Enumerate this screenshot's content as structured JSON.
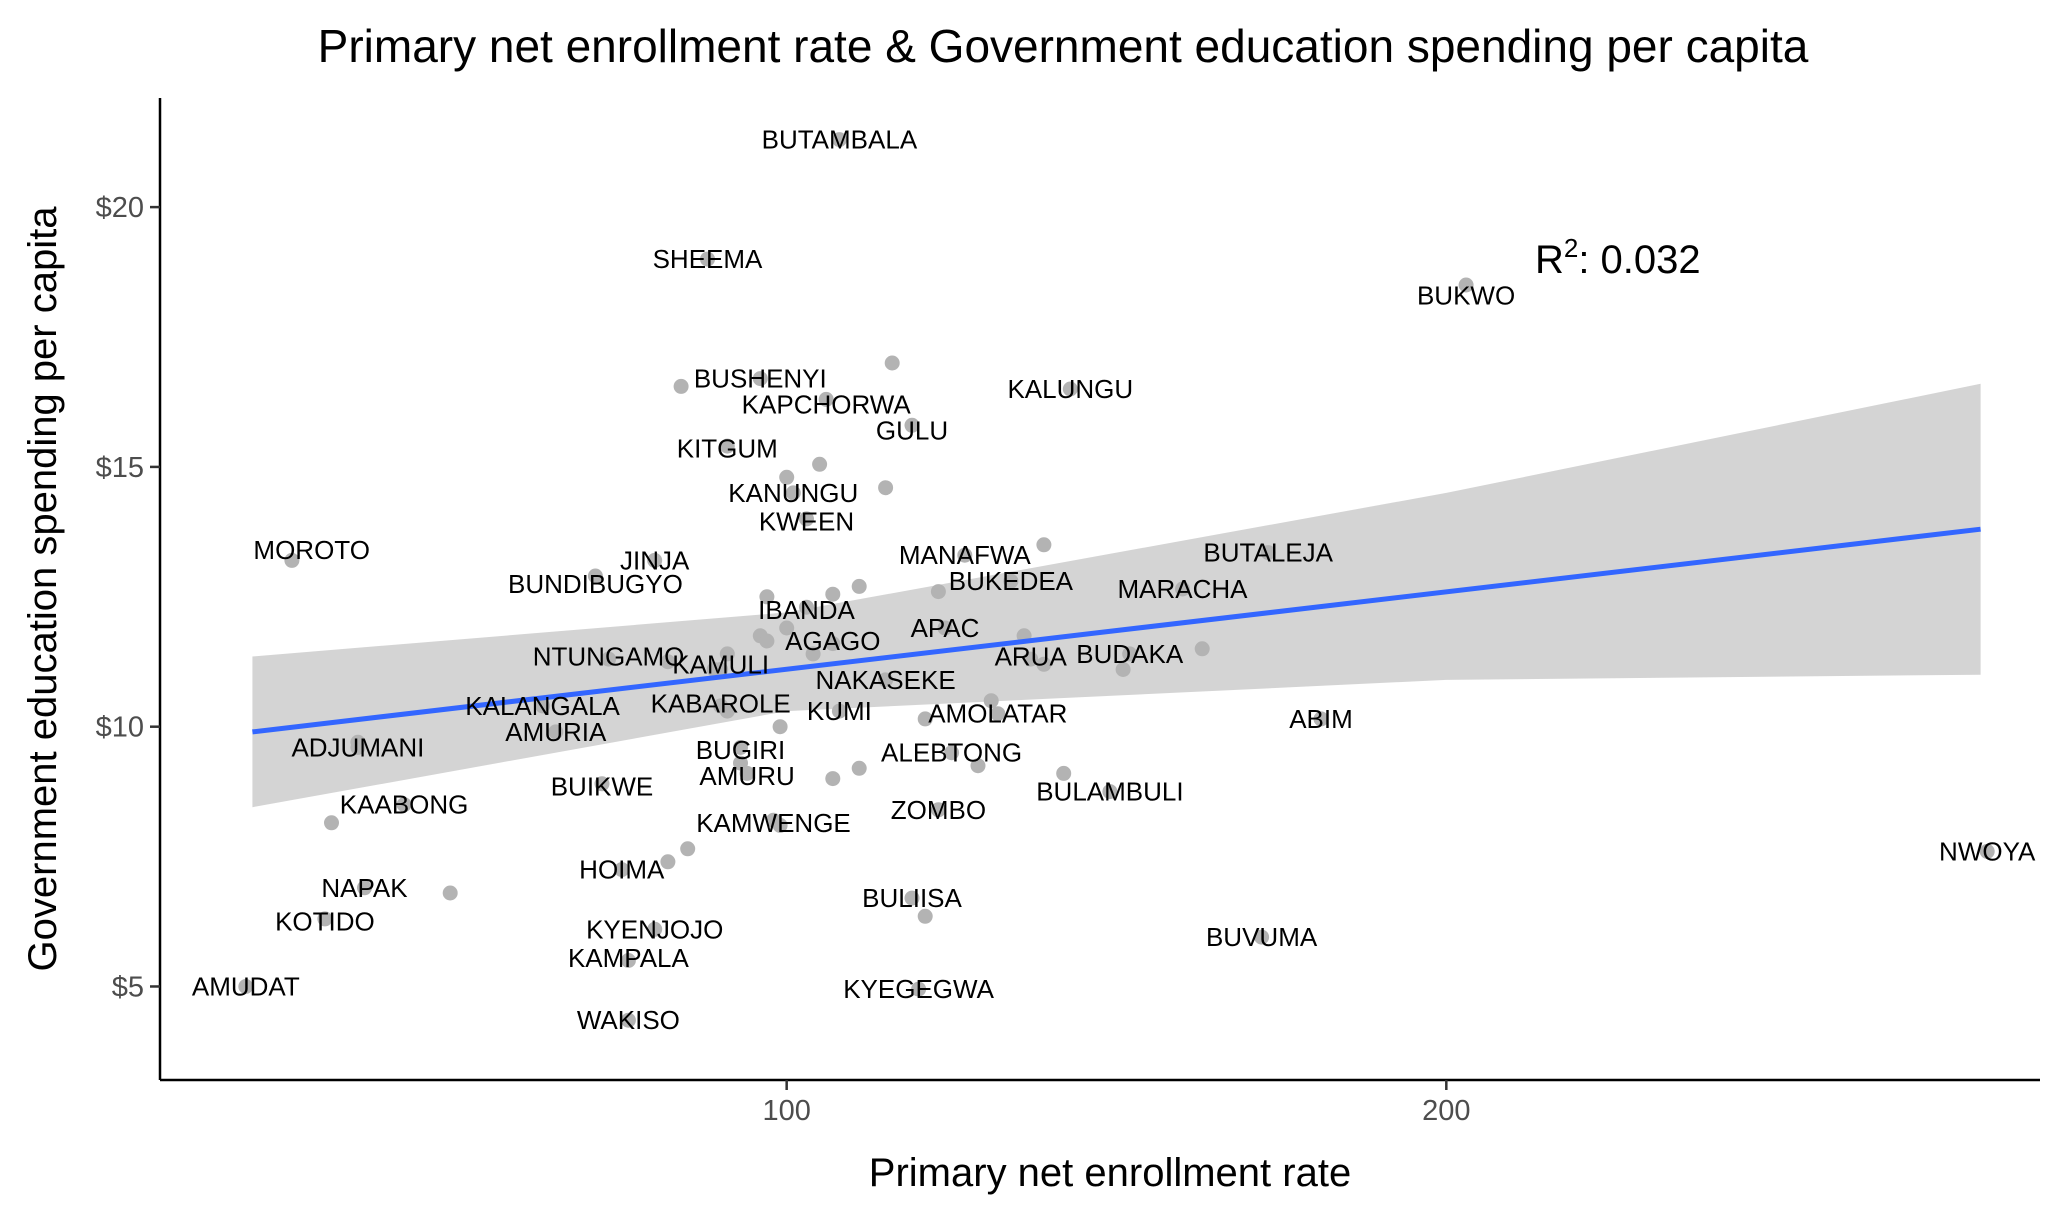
{
  "chart_data": {
    "type": "scatter",
    "title": "Primary net enrollment rate & Government education spending per capita",
    "xlabel": "Primary net enrollment rate",
    "ylabel": "Government education spending per capita",
    "xlim": [
      5,
      290
    ],
    "ylim": [
      3.2,
      22.1
    ],
    "x_ticks": [
      100,
      200
    ],
    "x_tick_labels": [
      "100",
      "200"
    ],
    "y_ticks": [
      5,
      10,
      15,
      20
    ],
    "y_tick_labels": [
      "$5",
      "$10",
      "$15",
      "$20"
    ],
    "annotation": {
      "label": "R",
      "superscript": "2",
      "text": ": 0.032",
      "x": 226,
      "y": 19.0
    },
    "fit": {
      "x_start": 19,
      "x_end": 281,
      "line": [
        [
          19,
          9.9
        ],
        [
          281,
          13.8
        ]
      ],
      "band_upper": [
        [
          19,
          11.35
        ],
        [
          100,
          12.2
        ],
        [
          200,
          14.5
        ],
        [
          281,
          16.6
        ]
      ],
      "band_lower": [
        [
          19,
          8.45
        ],
        [
          100,
          10.3
        ],
        [
          200,
          10.9
        ],
        [
          281,
          11.0
        ]
      ],
      "color": "#3366ff",
      "band_color": "#cccccc"
    },
    "point_color": "#b3b3b3",
    "points": [
      {
        "label": "BUTAMBALA",
        "x": 108,
        "y": 21.3,
        "lx": 108,
        "ly": 21.3
      },
      {
        "label": "SHEEMA",
        "x": 88,
        "y": 19.0,
        "lx": 88,
        "ly": 19.0
      },
      {
        "label": "BUKWO",
        "x": 203,
        "y": 18.5,
        "lx": 203,
        "ly": 18.3
      },
      {
        "label": "BUSHENYI",
        "x": 96,
        "y": 16.7,
        "lx": 96,
        "ly": 16.7
      },
      {
        "label": "KAPCHORWA",
        "x": 106,
        "y": 16.3,
        "lx": 106,
        "ly": 16.2
      },
      {
        "label": "KALUNGU",
        "x": 143,
        "y": 16.5,
        "lx": 143,
        "ly": 16.5
      },
      {
        "label": "GULU",
        "x": 119,
        "y": 15.8,
        "lx": 119,
        "ly": 15.7
      },
      {
        "label": "KITGUM",
        "x": 91,
        "y": 15.4,
        "lx": 91,
        "ly": 15.35
      },
      {
        "label": "KANUNGU",
        "x": 101,
        "y": 14.5,
        "lx": 101,
        "ly": 14.5
      },
      {
        "label": "KWEEN",
        "x": 103,
        "y": 14.0,
        "lx": 103,
        "ly": 13.95
      },
      {
        "label": "MOROTO",
        "x": 25,
        "y": 13.2,
        "lx": 28,
        "ly": 13.4
      },
      {
        "label": "JINJA",
        "x": 80,
        "y": 13.2,
        "lx": 80,
        "ly": 13.2
      },
      {
        "label": "BUNDIBUGYO",
        "x": 71,
        "y": 12.9,
        "lx": 71,
        "ly": 12.75
      },
      {
        "label": "MANAFWA",
        "x": 127,
        "y": 13.3,
        "lx": 127,
        "ly": 13.3
      },
      {
        "label": "BUTALEJA",
        "x": 173,
        "y": 13.35,
        "lx": 173,
        "ly": 13.35
      },
      {
        "label": "BUKEDEA",
        "x": 134,
        "y": 12.8,
        "lx": 134,
        "ly": 12.8
      },
      {
        "label": "MARACHA",
        "x": 160,
        "y": 12.65,
        "lx": 160,
        "ly": 12.65
      },
      {
        "label": "IBANDA",
        "x": 103,
        "y": 12.3,
        "lx": 103,
        "ly": 12.25
      },
      {
        "label": "APAC",
        "x": 124,
        "y": 11.9,
        "lx": 124,
        "ly": 11.9
      },
      {
        "label": "AGAGO",
        "x": 107,
        "y": 11.6,
        "lx": 107,
        "ly": 11.65
      },
      {
        "label": "NTUNGAMO",
        "x": 73,
        "y": 11.3,
        "lx": 73,
        "ly": 11.35
      },
      {
        "label": "ARUA",
        "x": 137,
        "y": 11.3,
        "lx": 137,
        "ly": 11.35
      },
      {
        "label": "BUDAKA",
        "x": 152,
        "y": 11.4,
        "lx": 152,
        "ly": 11.4
      },
      {
        "label": "KAMULI",
        "x": 90,
        "y": 11.1,
        "lx": 90,
        "ly": 11.2
      },
      {
        "label": "NAKASEKE",
        "x": 115,
        "y": 10.9,
        "lx": 115,
        "ly": 10.9
      },
      {
        "label": "KALANGALA",
        "x": 63,
        "y": 10.4,
        "lx": 63,
        "ly": 10.4
      },
      {
        "label": "KABAROLE",
        "x": 90,
        "y": 10.4,
        "lx": 90,
        "ly": 10.45
      },
      {
        "label": "KUMI",
        "x": 108,
        "y": 10.3,
        "lx": 108,
        "ly": 10.3
      },
      {
        "label": "AMOLATAR",
        "x": 132,
        "y": 10.25,
        "lx": 132,
        "ly": 10.25
      },
      {
        "label": "AMURIA",
        "x": 65,
        "y": 9.9,
        "lx": 65,
        "ly": 9.9
      },
      {
        "label": "ABIM",
        "x": 181,
        "y": 10.15,
        "lx": 181,
        "ly": 10.15
      },
      {
        "label": "ADJUMANI",
        "x": 35,
        "y": 9.6,
        "lx": 35,
        "ly": 9.6
      },
      {
        "label": "BUGIRI",
        "x": 93,
        "y": 9.6,
        "lx": 93,
        "ly": 9.55
      },
      {
        "label": "ALEBTONG",
        "x": 125,
        "y": 9.5,
        "lx": 125,
        "ly": 9.5
      },
      {
        "label": "AMURU",
        "x": 94,
        "y": 9.1,
        "lx": 94,
        "ly": 9.05
      },
      {
        "label": "BUIKWE",
        "x": 72,
        "y": 8.9,
        "lx": 72,
        "ly": 8.85
      },
      {
        "label": "BULAMBULI",
        "x": 149,
        "y": 8.75,
        "lx": 149,
        "ly": 8.75
      },
      {
        "label": "KAABONG",
        "x": 42,
        "y": 8.5,
        "lx": 42,
        "ly": 8.5
      },
      {
        "label": "ZOMBO",
        "x": 123,
        "y": 8.4,
        "lx": 123,
        "ly": 8.4
      },
      {
        "label": "KAMWENGE",
        "x": 98,
        "y": 8.2,
        "lx": 98,
        "ly": 8.15
      },
      {
        "label": "NWOYA",
        "x": 282,
        "y": 7.6,
        "lx": 282,
        "ly": 7.6
      },
      {
        "label": "HOIMA",
        "x": 75,
        "y": 7.25,
        "lx": 75,
        "ly": 7.25
      },
      {
        "label": "NAPAK",
        "x": 36,
        "y": 6.9,
        "lx": 36,
        "ly": 6.9
      },
      {
        "label": "BULIISA",
        "x": 119,
        "y": 6.7,
        "lx": 119,
        "ly": 6.7
      },
      {
        "label": "KOTIDO",
        "x": 30,
        "y": 6.3,
        "lx": 30,
        "ly": 6.25
      },
      {
        "label": "KYENJOJO",
        "x": 80,
        "y": 6.1,
        "lx": 80,
        "ly": 6.1
      },
      {
        "label": "BUVUMA",
        "x": 172,
        "y": 5.95,
        "lx": 172,
        "ly": 5.95
      },
      {
        "label": "KAMPALA",
        "x": 76,
        "y": 5.5,
        "lx": 76,
        "ly": 5.55
      },
      {
        "label": "AMUDAT",
        "x": 18,
        "y": 5.0,
        "lx": 18,
        "ly": 5.0
      },
      {
        "label": "KYEGEGWA",
        "x": 120,
        "y": 4.95,
        "lx": 120,
        "ly": 4.95
      },
      {
        "label": "WAKISO",
        "x": 76,
        "y": 4.35,
        "lx": 76,
        "ly": 4.35
      },
      {
        "label": "",
        "x": 116,
        "y": 17.0
      },
      {
        "label": "",
        "x": 84,
        "y": 16.55
      },
      {
        "label": "",
        "x": 105,
        "y": 15.05
      },
      {
        "label": "",
        "x": 115,
        "y": 14.6
      },
      {
        "label": "",
        "x": 100,
        "y": 14.8
      },
      {
        "label": "",
        "x": 139,
        "y": 13.5
      },
      {
        "label": "",
        "x": 111,
        "y": 12.7
      },
      {
        "label": "",
        "x": 107,
        "y": 12.55
      },
      {
        "label": "",
        "x": 123,
        "y": 12.6
      },
      {
        "label": "",
        "x": 97,
        "y": 12.5
      },
      {
        "label": "",
        "x": 100,
        "y": 11.9
      },
      {
        "label": "",
        "x": 96,
        "y": 11.75
      },
      {
        "label": "",
        "x": 97,
        "y": 11.65
      },
      {
        "label": "",
        "x": 104,
        "y": 11.4
      },
      {
        "label": "",
        "x": 136,
        "y": 11.75
      },
      {
        "label": "",
        "x": 139,
        "y": 11.2
      },
      {
        "label": "",
        "x": 151,
        "y": 11.1
      },
      {
        "label": "",
        "x": 163,
        "y": 11.5
      },
      {
        "label": "",
        "x": 82,
        "y": 11.25
      },
      {
        "label": "",
        "x": 89,
        "y": 11.1
      },
      {
        "label": "",
        "x": 91,
        "y": 11.4
      },
      {
        "label": "",
        "x": 99,
        "y": 10.0
      },
      {
        "label": "",
        "x": 91,
        "y": 10.3
      },
      {
        "label": "",
        "x": 121,
        "y": 10.15
      },
      {
        "label": "",
        "x": 131,
        "y": 10.5
      },
      {
        "label": "",
        "x": 111,
        "y": 9.2
      },
      {
        "label": "",
        "x": 107,
        "y": 9.0
      },
      {
        "label": "",
        "x": 129,
        "y": 9.25
      },
      {
        "label": "",
        "x": 142,
        "y": 9.1
      },
      {
        "label": "",
        "x": 93,
        "y": 9.3
      },
      {
        "label": "",
        "x": 99,
        "y": 8.1
      },
      {
        "label": "",
        "x": 85,
        "y": 7.65
      },
      {
        "label": "",
        "x": 82,
        "y": 7.4
      },
      {
        "label": "",
        "x": 49,
        "y": 6.8
      },
      {
        "label": "",
        "x": 121,
        "y": 6.35
      },
      {
        "label": "",
        "x": 31,
        "y": 8.15
      },
      {
        "label": "",
        "x": 35,
        "y": 9.7
      }
    ]
  }
}
